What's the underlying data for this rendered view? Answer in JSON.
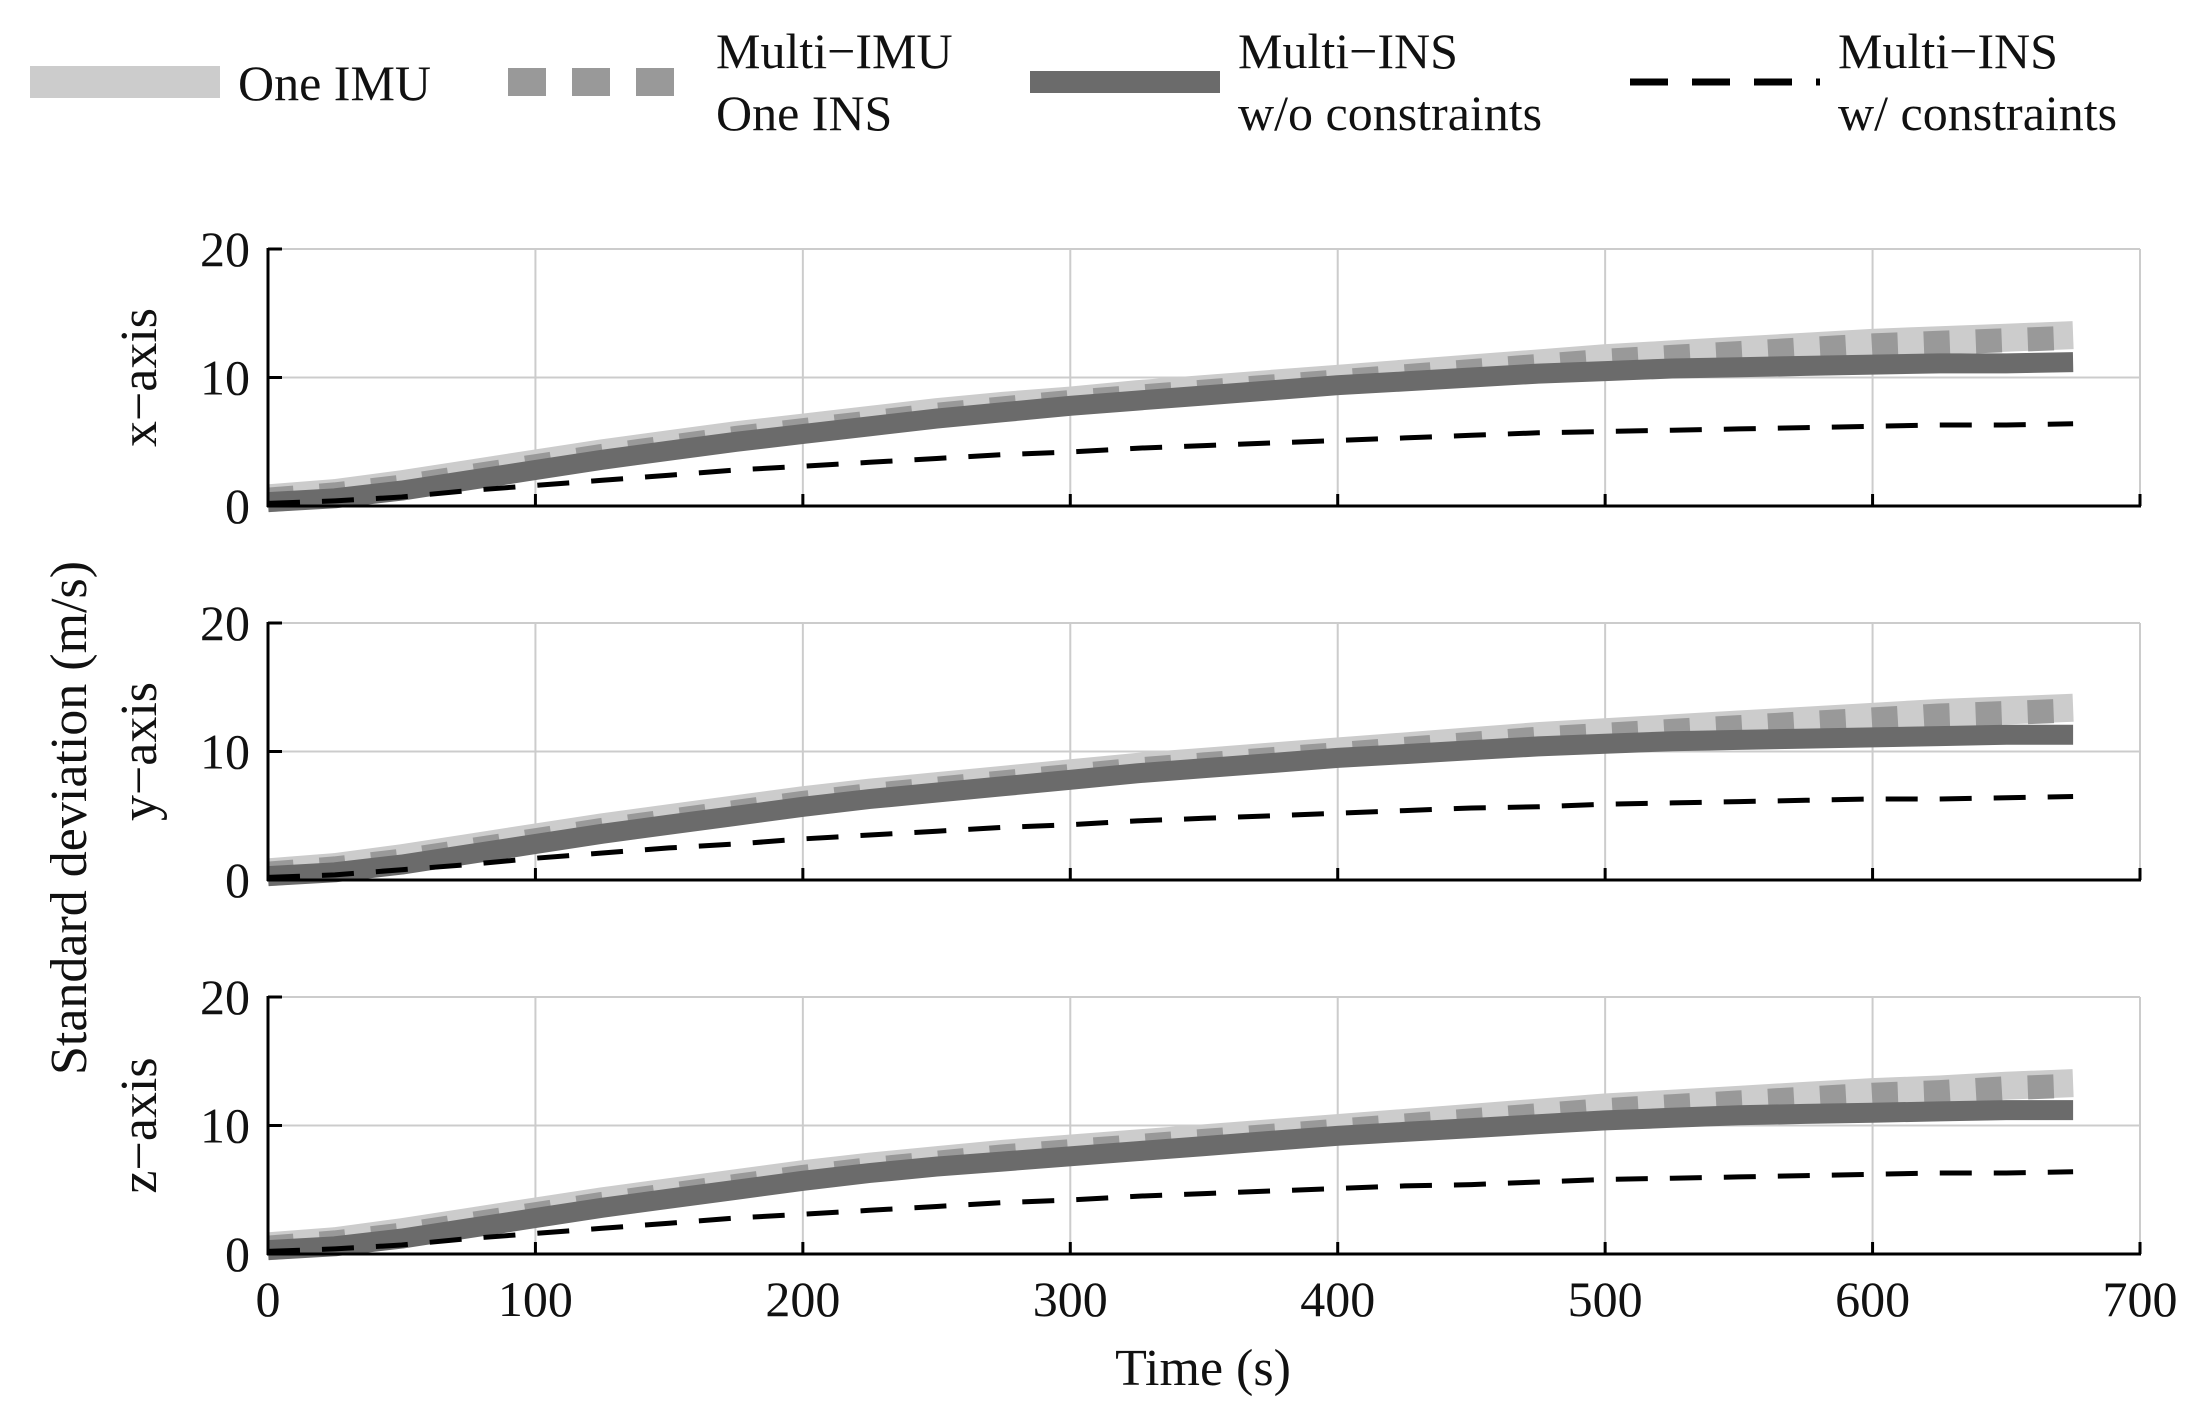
{
  "chart_data": {
    "type": "line",
    "ylabel": "Standard deviation (m/s)",
    "xlabel": "Time (s)",
    "xlim": [
      0,
      700
    ],
    "ylim": [
      0,
      20
    ],
    "x_ticks": [
      0,
      100,
      200,
      300,
      400,
      500,
      600,
      700
    ],
    "y_ticks": [
      0,
      10,
      20
    ],
    "grid": true,
    "legend_position": "top",
    "legend": [
      {
        "line1": "One IMU",
        "line2": ""
      },
      {
        "line1": "Multi−IMU",
        "line2": "One INS"
      },
      {
        "line1": "Multi−INS",
        "line2": "w/o constraints"
      },
      {
        "line1": "Multi−INS",
        "line2": "w/ constraints"
      }
    ],
    "colors": {
      "one_imu": "#cccccc",
      "multi_imu_one_ins": "#999999",
      "multi_ins_wo": "#6b6b6b",
      "multi_ins_w": "#000000",
      "grid": "#cccccc",
      "axis": "#000000"
    },
    "x": [
      0,
      25,
      50,
      75,
      100,
      125,
      150,
      175,
      200,
      225,
      250,
      275,
      300,
      325,
      350,
      375,
      400,
      425,
      450,
      475,
      500,
      525,
      550,
      575,
      600,
      625,
      650,
      675
    ],
    "subplots": [
      {
        "axis_label": "x−axis",
        "series": [
          {
            "name": "One IMU",
            "values": [
              0.6,
              1.0,
              1.7,
              2.5,
              3.3,
              4.1,
              4.8,
              5.5,
              6.1,
              6.7,
              7.3,
              7.8,
              8.2,
              8.7,
              9.1,
              9.5,
              9.9,
              10.3,
              10.7,
              11.1,
              11.5,
              11.8,
              12.1,
              12.4,
              12.7,
              12.9,
              13.1,
              13.3
            ]
          },
          {
            "name": "Multi−IMU One INS",
            "values": [
              0.5,
              0.9,
              1.5,
              2.3,
              3.1,
              3.9,
              4.6,
              5.3,
              5.9,
              6.5,
              7.1,
              7.6,
              8.1,
              8.5,
              8.9,
              9.3,
              9.7,
              10.1,
              10.5,
              10.9,
              11.3,
              11.6,
              11.9,
              12.2,
              12.5,
              12.7,
              12.9,
              13.1
            ]
          },
          {
            "name": "Multi−INS w/o constraints",
            "values": [
              0.3,
              0.6,
              1.2,
              2.0,
              2.8,
              3.6,
              4.3,
              5.0,
              5.6,
              6.2,
              6.8,
              7.3,
              7.8,
              8.2,
              8.6,
              9.0,
              9.4,
              9.7,
              10.0,
              10.3,
              10.5,
              10.7,
              10.8,
              10.9,
              11.0,
              11.1,
              11.1,
              11.2
            ]
          },
          {
            "name": "Multi−INS w/ constraints",
            "values": [
              0.2,
              0.4,
              0.7,
              1.2,
              1.6,
              2.0,
              2.4,
              2.8,
              3.1,
              3.4,
              3.7,
              4.0,
              4.2,
              4.5,
              4.7,
              4.9,
              5.1,
              5.3,
              5.5,
              5.7,
              5.8,
              5.9,
              6.0,
              6.1,
              6.2,
              6.3,
              6.3,
              6.4
            ]
          }
        ]
      },
      {
        "axis_label": "y−axis",
        "series": [
          {
            "name": "One IMU",
            "values": [
              0.6,
              1.0,
              1.7,
              2.5,
              3.3,
              4.1,
              4.8,
              5.5,
              6.2,
              6.8,
              7.3,
              7.8,
              8.3,
              8.8,
              9.2,
              9.6,
              10.0,
              10.4,
              10.8,
              11.2,
              11.5,
              11.8,
              12.1,
              12.4,
              12.7,
              13.0,
              13.2,
              13.4
            ]
          },
          {
            "name": "Multi−IMU One INS",
            "values": [
              0.5,
              0.9,
              1.5,
              2.3,
              3.1,
              3.9,
              4.6,
              5.3,
              6.0,
              6.6,
              7.1,
              7.6,
              8.1,
              8.6,
              9.0,
              9.4,
              9.8,
              10.2,
              10.6,
              11.0,
              11.3,
              11.6,
              11.9,
              12.2,
              12.5,
              12.8,
              13.0,
              13.2
            ]
          },
          {
            "name": "Multi−INS w/o constraints",
            "values": [
              0.3,
              0.6,
              1.2,
              2.0,
              2.8,
              3.6,
              4.3,
              5.0,
              5.7,
              6.3,
              6.8,
              7.3,
              7.8,
              8.3,
              8.7,
              9.1,
              9.5,
              9.8,
              10.1,
              10.4,
              10.6,
              10.8,
              10.9,
              11.0,
              11.1,
              11.2,
              11.3,
              11.3
            ]
          },
          {
            "name": "Multi−INS w/ constraints",
            "values": [
              0.2,
              0.4,
              0.8,
              1.2,
              1.7,
              2.1,
              2.5,
              2.8,
              3.2,
              3.5,
              3.8,
              4.1,
              4.3,
              4.6,
              4.8,
              5.0,
              5.2,
              5.4,
              5.6,
              5.7,
              5.9,
              6.0,
              6.1,
              6.2,
              6.3,
              6.3,
              6.4,
              6.5
            ]
          }
        ]
      },
      {
        "axis_label": "z−axis",
        "series": [
          {
            "name": "One IMU",
            "values": [
              0.6,
              1.0,
              1.7,
              2.5,
              3.3,
              4.1,
              4.8,
              5.5,
              6.2,
              6.8,
              7.3,
              7.8,
              8.2,
              8.6,
              9.0,
              9.4,
              9.8,
              10.2,
              10.6,
              11.0,
              11.4,
              11.7,
              12.0,
              12.3,
              12.6,
              12.8,
              13.1,
              13.3
            ]
          },
          {
            "name": "Multi−IMU One INS",
            "values": [
              0.5,
              0.9,
              1.5,
              2.3,
              3.1,
              3.9,
              4.6,
              5.3,
              6.0,
              6.6,
              7.1,
              7.6,
              8.0,
              8.4,
              8.8,
              9.2,
              9.6,
              10.0,
              10.4,
              10.8,
              11.2,
              11.5,
              11.8,
              12.1,
              12.4,
              12.6,
              12.9,
              13.1
            ]
          },
          {
            "name": "Multi−INS w/o constraints",
            "values": [
              0.3,
              0.6,
              1.2,
              2.0,
              2.8,
              3.6,
              4.3,
              5.0,
              5.7,
              6.3,
              6.8,
              7.2,
              7.6,
              8.0,
              8.4,
              8.8,
              9.2,
              9.5,
              9.8,
              10.1,
              10.4,
              10.6,
              10.8,
              10.9,
              11.0,
              11.1,
              11.2,
              11.2
            ]
          },
          {
            "name": "Multi−INS w/ constraints",
            "values": [
              0.2,
              0.4,
              0.7,
              1.2,
              1.6,
              2.0,
              2.4,
              2.8,
              3.1,
              3.4,
              3.7,
              4.0,
              4.2,
              4.5,
              4.7,
              4.9,
              5.1,
              5.3,
              5.4,
              5.6,
              5.8,
              5.9,
              6.0,
              6.1,
              6.2,
              6.3,
              6.3,
              6.4
            ]
          }
        ]
      }
    ]
  }
}
